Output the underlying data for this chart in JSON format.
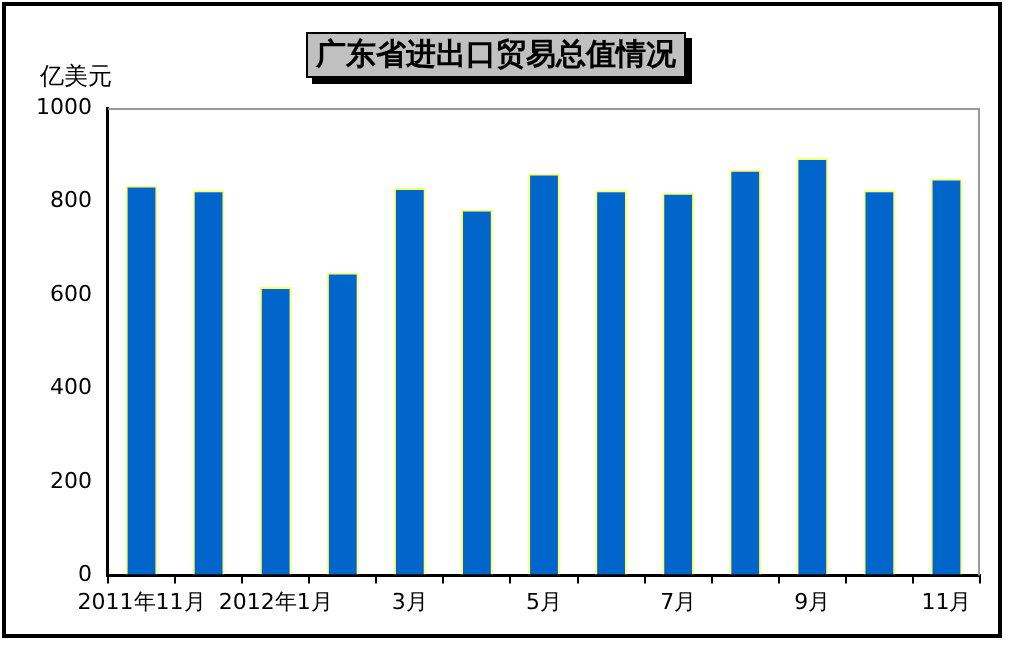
{
  "chart_data": {
    "type": "bar",
    "title": "广东省进出口贸易总值情况",
    "ylabel": "亿美元",
    "categories": [
      "2011年11月",
      null,
      "2012年1月",
      null,
      "3月",
      null,
      "5月",
      null,
      "7月",
      null,
      "9月",
      null,
      "11月"
    ],
    "values": [
      834,
      824,
      617,
      648,
      829,
      783,
      860,
      824,
      819,
      868,
      893,
      824,
      849
    ],
    "color": "#0066cc",
    "ylim": [
      0,
      1000
    ],
    "yticks": [
      0,
      200,
      400,
      600,
      800,
      1000
    ],
    "grid": false,
    "legend": false
  }
}
